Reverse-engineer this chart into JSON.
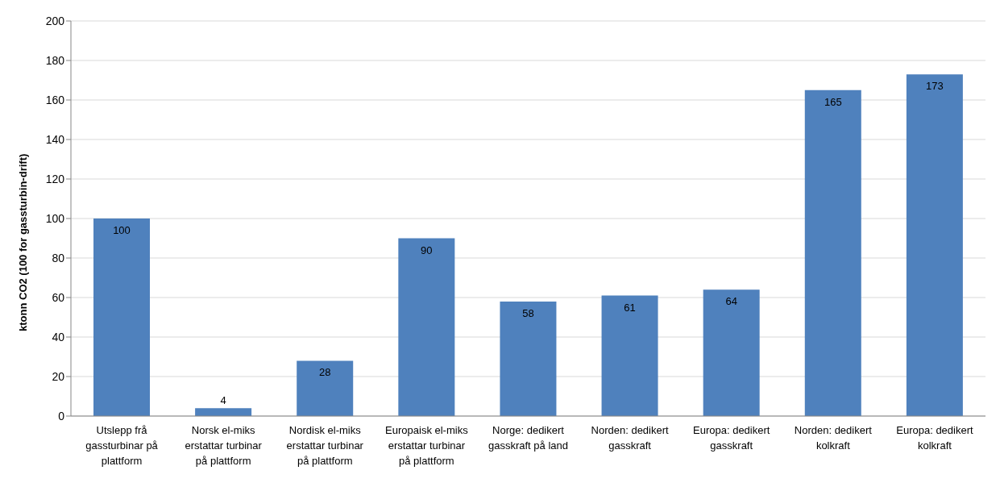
{
  "chart_data": {
    "type": "bar",
    "ylabel": "ktonn CO2 (100 for gassturbin-drift)",
    "categories": [
      "Utslepp frå gassturbinar på plattform",
      "Norsk el-miks erstattar turbinar på plattform",
      "Nordisk el-miks erstattar turbinar på plattform",
      "Europaisk el-miks erstattar turbinar på plattform",
      "Norge: dedikert gasskraft på land",
      "Norden: dedikert gasskraft",
      "Europa: dedikert gasskraft",
      "Norden: dedikert kolkraft",
      "Europa: dedikert kolkraft"
    ],
    "values": [
      100,
      4,
      28,
      90,
      58,
      61,
      64,
      165,
      173
    ],
    "color": "#4f81bd",
    "ylim": [
      0,
      200
    ],
    "yticks": [
      0,
      20,
      40,
      60,
      80,
      100,
      120,
      140,
      160,
      180,
      200
    ],
    "grid": "y",
    "data_labels": true,
    "legend": false
  }
}
